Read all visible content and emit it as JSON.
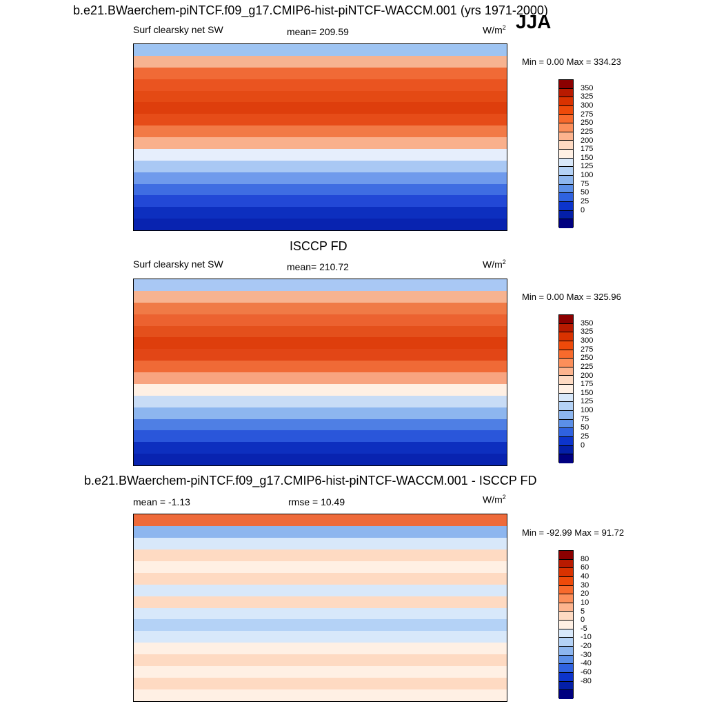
{
  "figure": {
    "title": "b.e21.BWaerchem-piNTCF.f09_g17.CMIP6-hist-piNTCF-WACCM.001 (yrs 1971-2000)",
    "season": "JJA",
    "obs_title": "ISCCP FD",
    "diff_title": "b.e21.BWaerchem-piNTCF.f09_g17.CMIP6-hist-piNTCF-WACCM.001 - ISCCP FD"
  },
  "chart_data": [
    {
      "type": "heatmap",
      "panel": "model",
      "variable": "Surf clearsky net SW",
      "mean_label": "mean= 209.59",
      "units": "W/m",
      "units_sup": "2",
      "minmax_label": "Min =   0.00 Max = 334.23",
      "min": 0.0,
      "max": 334.23,
      "colorbar_levels": [
        "350",
        "325",
        "300",
        "275",
        "250",
        "225",
        "200",
        "175",
        "150",
        "125",
        "100",
        "75",
        "50",
        "25",
        "0"
      ],
      "colorbar_colors": [
        "#8b0000",
        "#b81a00",
        "#d93200",
        "#ee4a0a",
        "#f86a2c",
        "#fc8f5a",
        "#fdb48e",
        "#fedac2",
        "#fff0e4",
        "#d8e8fa",
        "#b4d2f6",
        "#8db6ef",
        "#5b8fe8",
        "#2f62e0",
        "#0c34cc",
        "#041fa8",
        "#000080"
      ]
    },
    {
      "type": "heatmap",
      "panel": "observations",
      "variable": "Surf clearsky net SW",
      "mean_label": "mean= 210.72",
      "units": "W/m",
      "units_sup": "2",
      "minmax_label": "Min =   0.00 Max = 325.96",
      "min": 0.0,
      "max": 325.96,
      "colorbar_levels": [
        "350",
        "325",
        "300",
        "275",
        "250",
        "225",
        "200",
        "175",
        "150",
        "125",
        "100",
        "75",
        "50",
        "25",
        "0"
      ],
      "colorbar_colors": [
        "#8b0000",
        "#b81a00",
        "#d93200",
        "#ee4a0a",
        "#f86a2c",
        "#fc8f5a",
        "#fdb48e",
        "#fedac2",
        "#fff0e4",
        "#d8e8fa",
        "#b4d2f6",
        "#8db6ef",
        "#5b8fe8",
        "#2f62e0",
        "#0c34cc",
        "#041fa8",
        "#000080"
      ]
    },
    {
      "type": "heatmap",
      "panel": "difference",
      "mean_label": "mean =  -1.13",
      "rmse_label": "rmse =  10.49",
      "units": "W/m",
      "units_sup": "2",
      "minmax_label": "Min = -92.99 Max =  91.72",
      "min": -92.99,
      "max": 91.72,
      "colorbar_levels": [
        "80",
        "60",
        "40",
        "30",
        "20",
        "10",
        "5",
        "0",
        "-5",
        "-10",
        "-20",
        "-30",
        "-40",
        "-60",
        "-80"
      ],
      "colorbar_colors": [
        "#8b0000",
        "#b81a00",
        "#d93200",
        "#ee4a0a",
        "#f86a2c",
        "#fc8f5a",
        "#fdb48e",
        "#fedac2",
        "#fff0e4",
        "#d8e8fa",
        "#b4d2f6",
        "#8db6ef",
        "#5b8fe8",
        "#2f62e0",
        "#0c34cc",
        "#041fa8",
        "#000080"
      ]
    }
  ]
}
